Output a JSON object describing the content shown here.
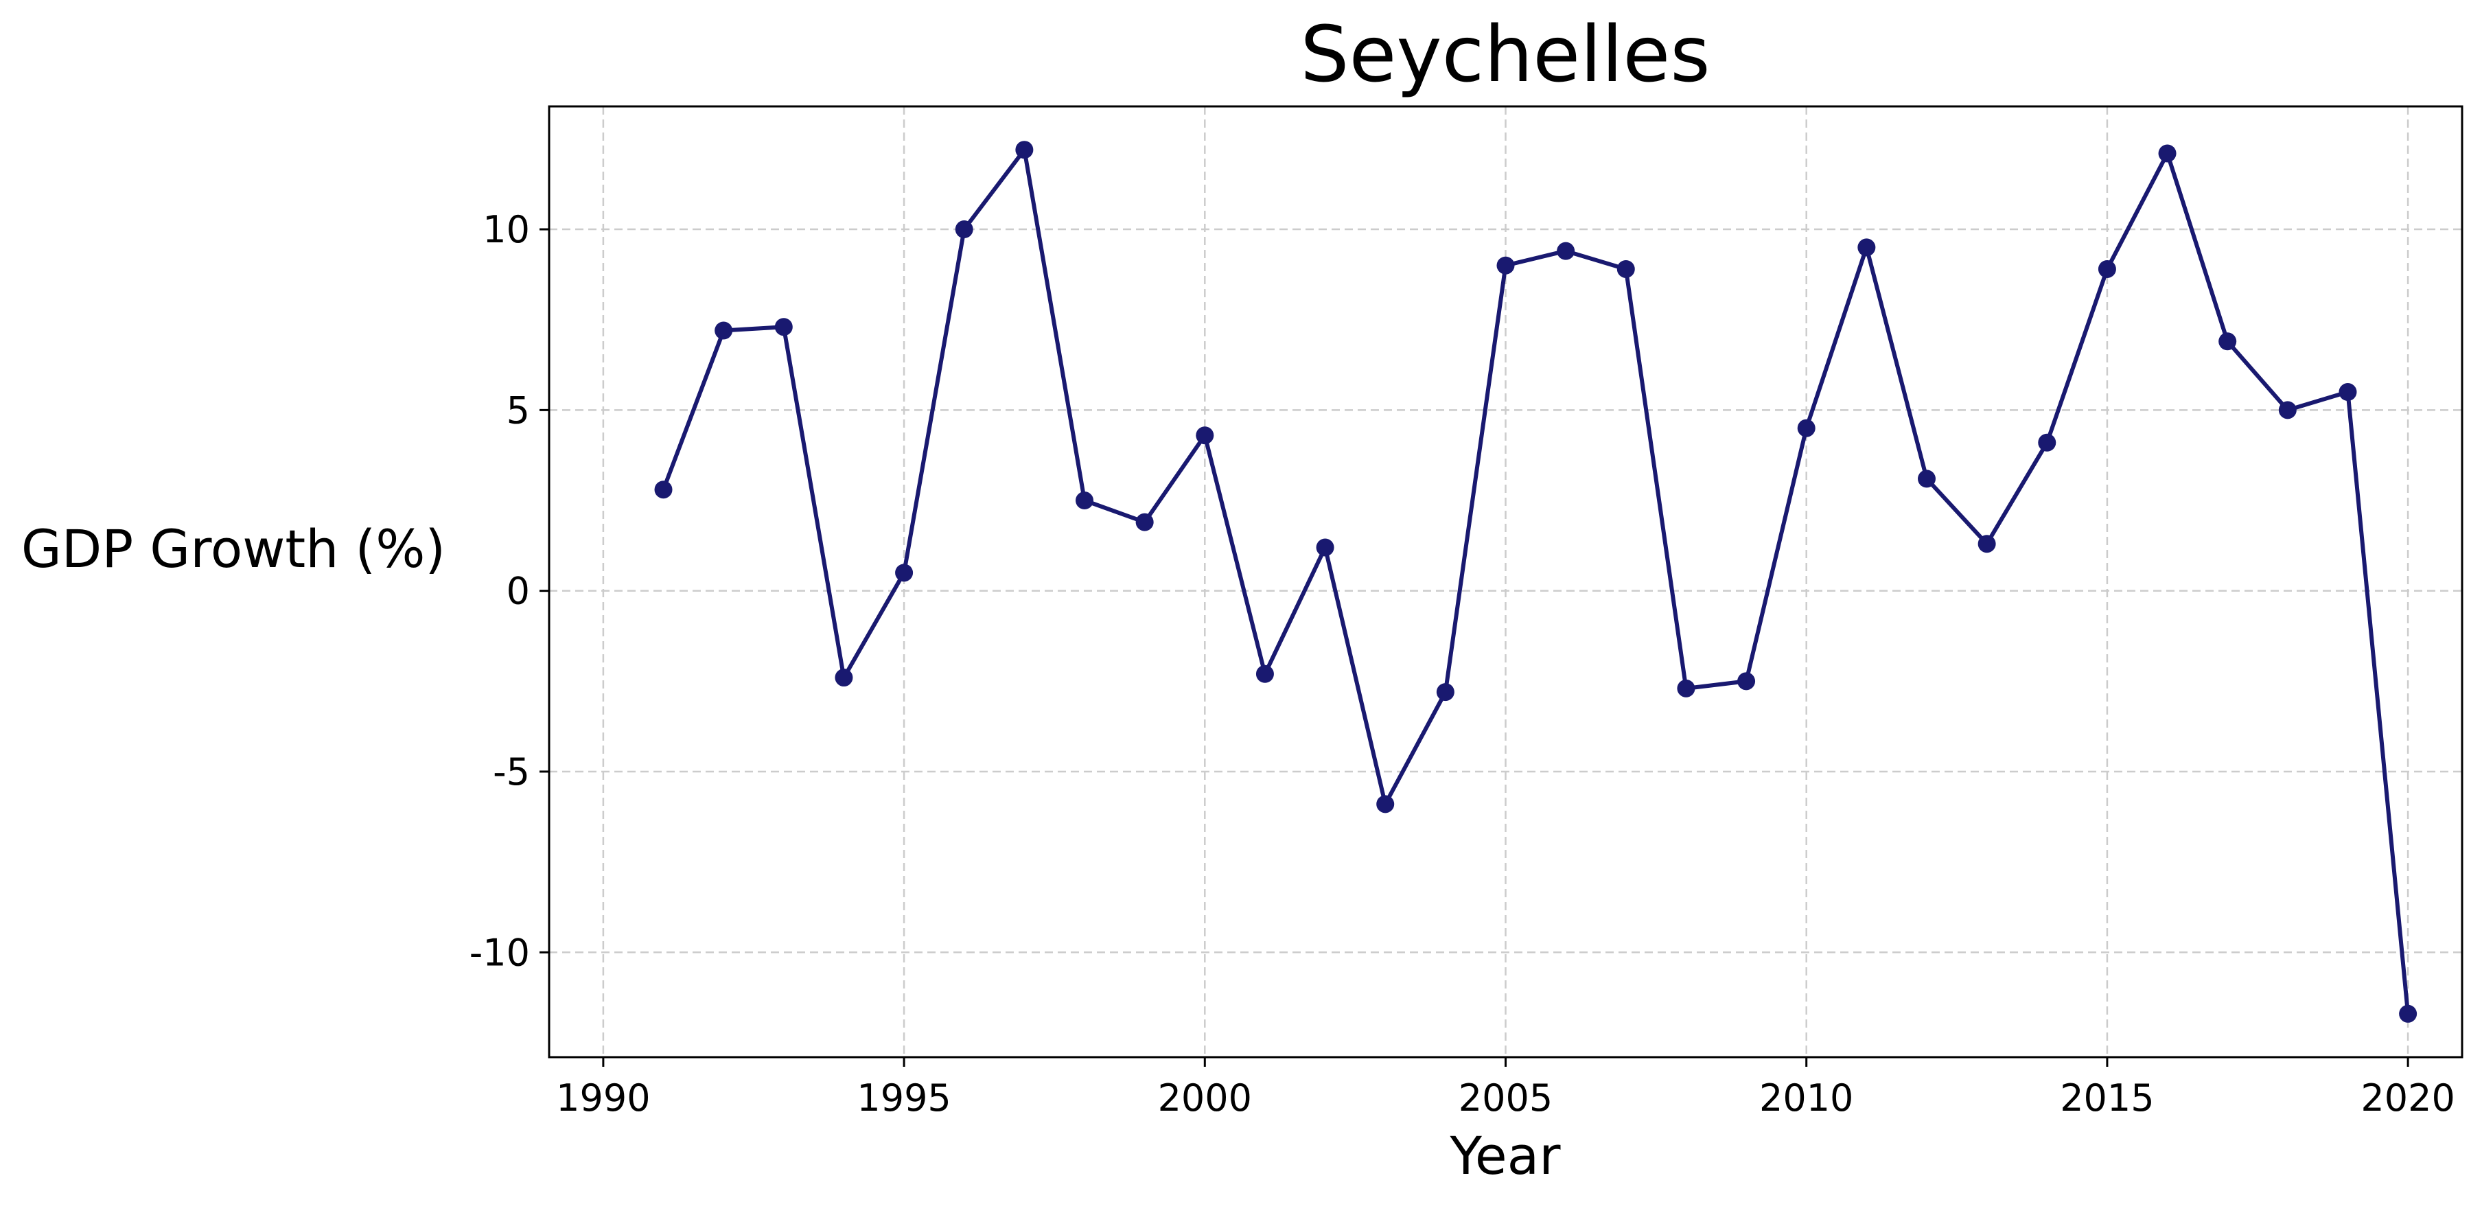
{
  "colors": {
    "series": "#191970",
    "grid": "#cccccc",
    "axis": "#000000",
    "background": "#ffffff"
  },
  "chart_data": {
    "type": "line",
    "title": "Seychelles",
    "xlabel": "Year",
    "ylabel": "GDP Growth (%)",
    "xlim": [
      1989.1,
      2020.9
    ],
    "ylim": [
      -12.9,
      13.4
    ],
    "xticks": [
      1990,
      1995,
      2000,
      2005,
      2010,
      2015,
      2020
    ],
    "xtick_labels": [
      "1990",
      "1995",
      "2000",
      "2005",
      "2010",
      "2015",
      "2020"
    ],
    "yticks": [
      -10,
      -5,
      0,
      5,
      10
    ],
    "ytick_labels": [
      "-10",
      "-5",
      "0",
      "5",
      "10"
    ],
    "grid": true,
    "grid_style": "dashed",
    "marker": "circle",
    "series": [
      {
        "x": [
          1991,
          1992,
          1993,
          1994,
          1995,
          1996,
          1997,
          1998,
          1999,
          2000,
          2001,
          2002,
          2003,
          2004,
          2005,
          2006,
          2007,
          2008,
          2009,
          2010,
          2011,
          2012,
          2013,
          2014,
          2015,
          2016,
          2017,
          2018,
          2019,
          2020
        ],
        "values": [
          2.8,
          7.2,
          7.3,
          -2.4,
          0.5,
          10.0,
          12.2,
          2.5,
          1.9,
          4.3,
          -2.3,
          1.2,
          -5.9,
          -2.8,
          9.0,
          9.4,
          8.9,
          -2.7,
          -2.5,
          4.5,
          9.5,
          3.1,
          1.3,
          4.1,
          8.9,
          12.1,
          6.9,
          5.0,
          5.5,
          -11.7
        ]
      }
    ]
  }
}
